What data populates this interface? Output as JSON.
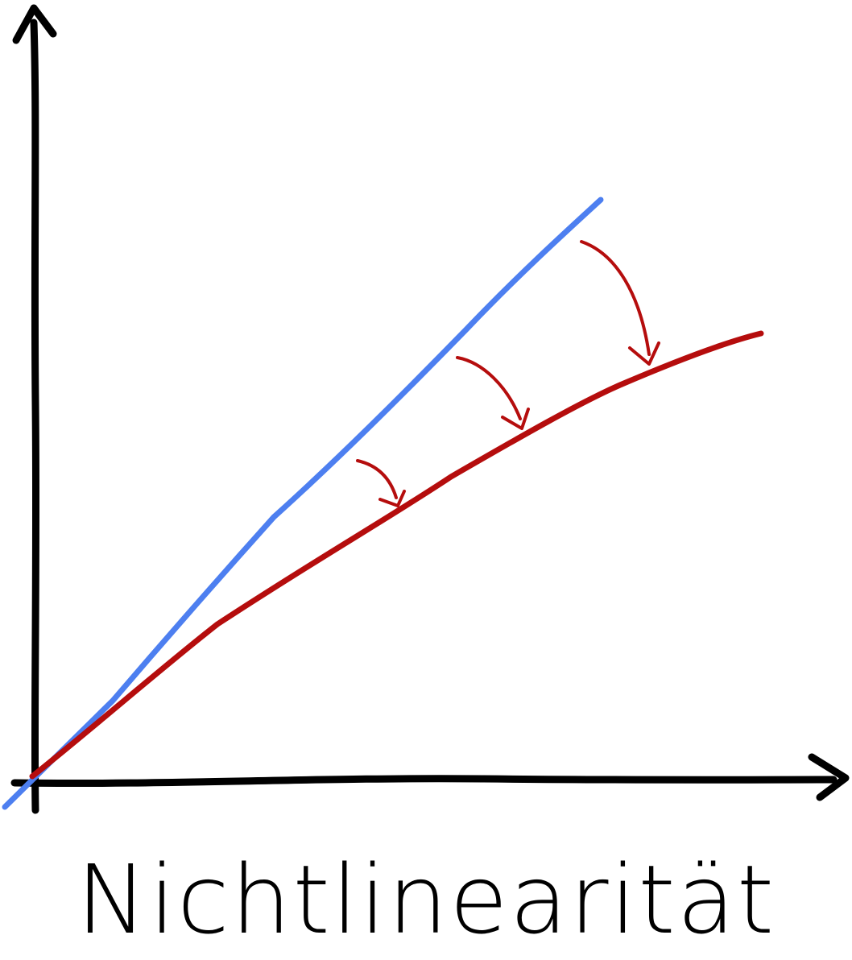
{
  "caption": "Nichtlinearität",
  "colors": {
    "axes": "#000000",
    "linear_line": "#4d7ff0",
    "nonlinear_line": "#b50d0d",
    "arrows": "#b50d0d",
    "caption_text": "#000000"
  },
  "icons": {
    "y_arrowhead": "arrow-up-icon",
    "x_arrowhead": "arrow-right-icon",
    "bend_arrows": "curved-arrow-down-icon"
  }
}
